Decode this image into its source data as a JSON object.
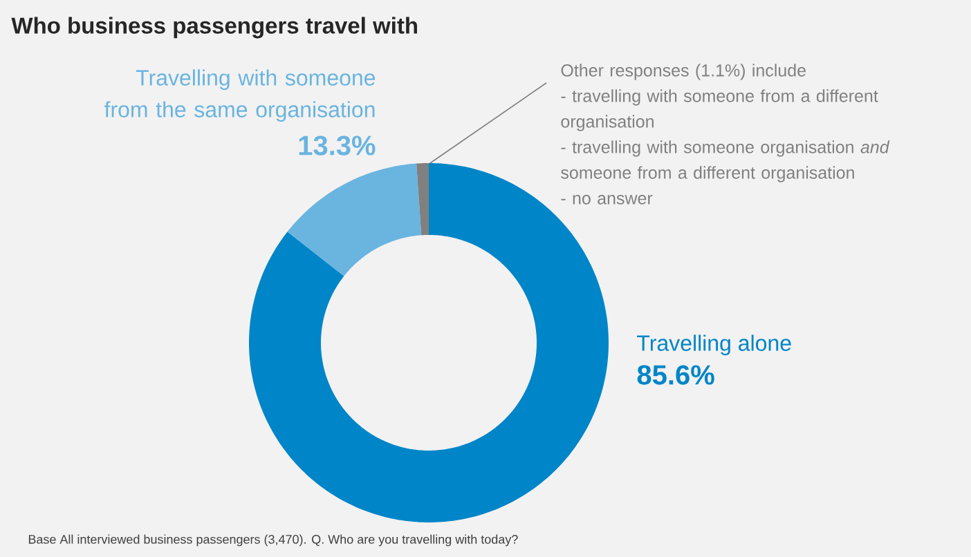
{
  "chart_data": {
    "type": "donut",
    "title": "Who business passengers travel with",
    "categories": [
      "Travelling alone",
      "Travelling with someone from the same organisation",
      "Other responses (1.1%) include"
    ],
    "values": [
      85.6,
      13.3,
      1.1
    ],
    "colors": [
      "#0085c8",
      "#6ab4e0",
      "#808080"
    ],
    "value_labels": [
      "85.6%",
      "13.3%",
      null
    ],
    "annotations": [
      "- travelling with someone from a different organisation",
      "- travelling with someone organisation *and* someone from a different organisation",
      "- no answer",
      "Base  All interviewed business passengers (3,470).  Q.  Who are you travelling with today?"
    ]
  }
}
